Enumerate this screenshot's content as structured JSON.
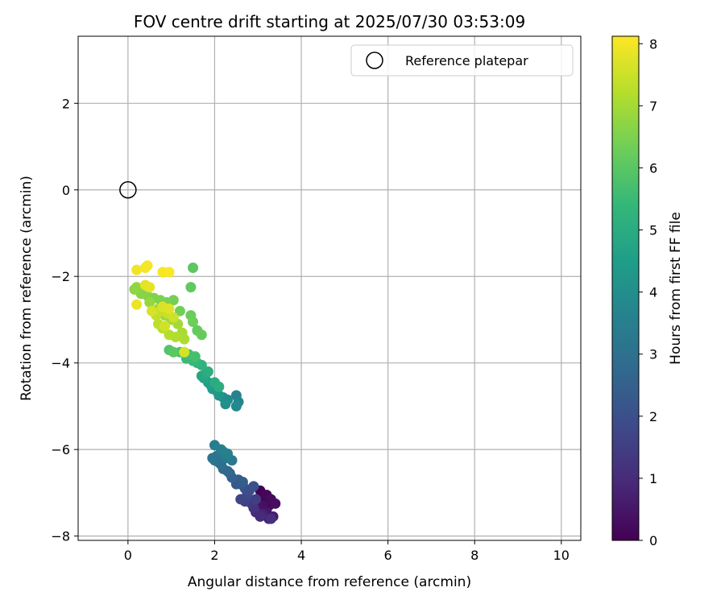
{
  "chart_data": {
    "type": "scatter",
    "title": "FOV centre drift starting at 2025/07/30 03:53:09",
    "xlabel": "Angular distance from reference (arcmin)",
    "ylabel": "Rotation from reference (arcmin)",
    "xlim": [
      -1.15,
      10.45
    ],
    "ylim": [
      -8.1,
      3.55
    ],
    "xticks": [
      0,
      2,
      4,
      6,
      8,
      10
    ],
    "yticks": [
      -8,
      -6,
      -4,
      -2,
      0,
      2
    ],
    "grid": true,
    "legend": {
      "position": "top-right",
      "entries": [
        "Reference platepar"
      ]
    },
    "reference_point": {
      "x": 0,
      "y": 0
    },
    "colorbar": {
      "label": "Hours from first FF file",
      "range": [
        0,
        8.12
      ],
      "ticks": [
        0,
        1,
        2,
        3,
        4,
        5,
        6,
        7,
        8
      ],
      "colormap": "viridis"
    },
    "colors": {
      "viridis": [
        "#440154",
        "#482878",
        "#3e4989",
        "#31688e",
        "#26828e",
        "#1f9e89",
        "#35b779",
        "#6ece58",
        "#b5de2b",
        "#fde725"
      ],
      "grid": "#b0b0b0",
      "axis": "#000000"
    },
    "points": [
      {
        "x": 3.05,
        "y": -6.95,
        "h": 0.0
      },
      {
        "x": 3.1,
        "y": -7.1,
        "h": 0.05
      },
      {
        "x": 3.15,
        "y": -7.2,
        "h": 0.1
      },
      {
        "x": 3.2,
        "y": -7.05,
        "h": 0.15
      },
      {
        "x": 3.25,
        "y": -7.3,
        "h": 0.2
      },
      {
        "x": 3.3,
        "y": -7.15,
        "h": 0.25
      },
      {
        "x": 3.4,
        "y": -7.25,
        "h": 0.3
      },
      {
        "x": 3.1,
        "y": -7.3,
        "h": 0.35
      },
      {
        "x": 3.0,
        "y": -7.4,
        "h": 0.45
      },
      {
        "x": 3.2,
        "y": -7.45,
        "h": 0.5
      },
      {
        "x": 3.35,
        "y": -7.55,
        "h": 0.6
      },
      {
        "x": 3.25,
        "y": -7.6,
        "h": 0.7
      },
      {
        "x": 3.1,
        "y": -7.5,
        "h": 0.8
      },
      {
        "x": 2.95,
        "y": -7.45,
        "h": 0.9
      },
      {
        "x": 3.05,
        "y": -7.55,
        "h": 1.0
      },
      {
        "x": 3.3,
        "y": -7.6,
        "h": 1.1
      },
      {
        "x": 2.9,
        "y": -7.35,
        "h": 1.2
      },
      {
        "x": 2.85,
        "y": -7.25,
        "h": 1.35
      },
      {
        "x": 2.95,
        "y": -7.15,
        "h": 1.5
      },
      {
        "x": 2.7,
        "y": -7.2,
        "h": 1.6
      },
      {
        "x": 2.6,
        "y": -7.15,
        "h": 1.7
      },
      {
        "x": 2.75,
        "y": -7.05,
        "h": 1.8
      },
      {
        "x": 2.8,
        "y": -6.95,
        "h": 1.9
      },
      {
        "x": 2.7,
        "y": -6.9,
        "h": 2.0
      },
      {
        "x": 2.9,
        "y": -6.85,
        "h": 2.05
      },
      {
        "x": 2.6,
        "y": -6.8,
        "h": 2.1
      },
      {
        "x": 2.5,
        "y": -6.8,
        "h": 2.2
      },
      {
        "x": 2.55,
        "y": -6.7,
        "h": 2.3
      },
      {
        "x": 2.65,
        "y": -6.75,
        "h": 2.4
      },
      {
        "x": 2.4,
        "y": -6.65,
        "h": 2.5
      },
      {
        "x": 2.35,
        "y": -6.55,
        "h": 2.6
      },
      {
        "x": 2.3,
        "y": -6.5,
        "h": 2.7
      },
      {
        "x": 2.2,
        "y": -6.45,
        "h": 2.8
      },
      {
        "x": 2.15,
        "y": -6.35,
        "h": 2.9
      },
      {
        "x": 2.1,
        "y": -6.3,
        "h": 3.0
      },
      {
        "x": 2.0,
        "y": -6.25,
        "h": 3.1
      },
      {
        "x": 1.95,
        "y": -6.2,
        "h": 3.15
      },
      {
        "x": 2.05,
        "y": -6.15,
        "h": 3.2
      },
      {
        "x": 2.25,
        "y": -6.2,
        "h": 3.25
      },
      {
        "x": 2.4,
        "y": -6.25,
        "h": 3.3
      },
      {
        "x": 2.2,
        "y": -6.05,
        "h": 3.4
      },
      {
        "x": 2.0,
        "y": -5.9,
        "h": 3.45
      },
      {
        "x": 2.15,
        "y": -6.0,
        "h": 3.5
      },
      {
        "x": 2.3,
        "y": -6.1,
        "h": 3.55
      },
      {
        "x": 2.5,
        "y": -4.75,
        "h": 3.6
      },
      {
        "x": 2.55,
        "y": -4.9,
        "h": 3.7
      },
      {
        "x": 2.5,
        "y": -5.0,
        "h": 3.8
      },
      {
        "x": 2.3,
        "y": -4.85,
        "h": 3.9
      },
      {
        "x": 2.2,
        "y": -4.8,
        "h": 4.0
      },
      {
        "x": 2.25,
        "y": -4.95,
        "h": 4.1
      },
      {
        "x": 2.1,
        "y": -4.75,
        "h": 4.2
      },
      {
        "x": 2.05,
        "y": -4.65,
        "h": 4.3
      },
      {
        "x": 1.95,
        "y": -4.6,
        "h": 4.4
      },
      {
        "x": 1.9,
        "y": -4.5,
        "h": 4.5
      },
      {
        "x": 1.85,
        "y": -4.45,
        "h": 4.6
      },
      {
        "x": 1.75,
        "y": -4.35,
        "h": 4.7
      },
      {
        "x": 1.7,
        "y": -4.3,
        "h": 4.8
      },
      {
        "x": 1.8,
        "y": -4.25,
        "h": 4.9
      },
      {
        "x": 2.0,
        "y": -4.45,
        "h": 5.0
      },
      {
        "x": 2.1,
        "y": -4.55,
        "h": 5.05
      },
      {
        "x": 1.85,
        "y": -4.2,
        "h": 5.1
      },
      {
        "x": 1.7,
        "y": -4.05,
        "h": 5.2
      },
      {
        "x": 1.6,
        "y": -4.0,
        "h": 5.3
      },
      {
        "x": 1.5,
        "y": -3.95,
        "h": 5.4
      },
      {
        "x": 1.35,
        "y": -3.9,
        "h": 5.5
      },
      {
        "x": 1.4,
        "y": -3.8,
        "h": 5.6
      },
      {
        "x": 1.55,
        "y": -3.85,
        "h": 5.7
      },
      {
        "x": 1.2,
        "y": -3.75,
        "h": 5.8
      },
      {
        "x": 0.95,
        "y": -3.7,
        "h": 5.9
      },
      {
        "x": 1.05,
        "y": -3.75,
        "h": 6.0
      },
      {
        "x": 1.5,
        "y": -1.8,
        "h": 6.05
      },
      {
        "x": 1.45,
        "y": -2.25,
        "h": 6.1
      },
      {
        "x": 1.6,
        "y": -3.25,
        "h": 6.15
      },
      {
        "x": 1.7,
        "y": -3.35,
        "h": 6.2
      },
      {
        "x": 1.45,
        "y": -2.9,
        "h": 6.25
      },
      {
        "x": 1.5,
        "y": -3.05,
        "h": 6.3
      },
      {
        "x": 1.2,
        "y": -2.8,
        "h": 6.35
      },
      {
        "x": 1.05,
        "y": -2.55,
        "h": 6.4
      },
      {
        "x": 0.9,
        "y": -2.6,
        "h": 6.45
      },
      {
        "x": 0.75,
        "y": -2.55,
        "h": 6.5
      },
      {
        "x": 0.6,
        "y": -2.5,
        "h": 6.55
      },
      {
        "x": 0.45,
        "y": -2.45,
        "h": 6.6
      },
      {
        "x": 0.3,
        "y": -2.4,
        "h": 6.65
      },
      {
        "x": 0.15,
        "y": -2.3,
        "h": 6.7
      },
      {
        "x": 0.2,
        "y": -2.25,
        "h": 6.75
      },
      {
        "x": 0.5,
        "y": -2.6,
        "h": 6.8
      },
      {
        "x": 0.7,
        "y": -2.75,
        "h": 6.85
      },
      {
        "x": 0.85,
        "y": -2.9,
        "h": 6.9
      },
      {
        "x": 1.0,
        "y": -3.0,
        "h": 6.95
      },
      {
        "x": 1.15,
        "y": -3.1,
        "h": 7.0
      },
      {
        "x": 1.25,
        "y": -3.3,
        "h": 7.05
      },
      {
        "x": 1.3,
        "y": -3.45,
        "h": 7.1
      },
      {
        "x": 1.1,
        "y": -3.4,
        "h": 7.15
      },
      {
        "x": 0.95,
        "y": -3.35,
        "h": 7.2
      },
      {
        "x": 0.8,
        "y": -3.2,
        "h": 7.25
      },
      {
        "x": 0.7,
        "y": -3.1,
        "h": 7.3
      },
      {
        "x": 0.65,
        "y": -2.9,
        "h": 7.35
      },
      {
        "x": 0.75,
        "y": -2.8,
        "h": 7.4
      },
      {
        "x": 0.9,
        "y": -2.85,
        "h": 7.45
      },
      {
        "x": 1.05,
        "y": -2.95,
        "h": 7.5
      },
      {
        "x": 0.85,
        "y": -3.15,
        "h": 7.55
      },
      {
        "x": 1.3,
        "y": -3.75,
        "h": 7.6
      },
      {
        "x": 0.55,
        "y": -2.8,
        "h": 7.65
      },
      {
        "x": 0.8,
        "y": -2.7,
        "h": 7.7
      },
      {
        "x": 0.95,
        "y": -2.75,
        "h": 7.75
      },
      {
        "x": 0.4,
        "y": -2.2,
        "h": 7.8
      },
      {
        "x": 0.5,
        "y": -2.25,
        "h": 7.85
      },
      {
        "x": 0.2,
        "y": -2.65,
        "h": 7.9
      },
      {
        "x": 0.2,
        "y": -1.85,
        "h": 7.95
      },
      {
        "x": 0.4,
        "y": -1.8,
        "h": 8.0
      },
      {
        "x": 0.45,
        "y": -1.75,
        "h": 8.02
      },
      {
        "x": 0.8,
        "y": -1.9,
        "h": 8.05
      },
      {
        "x": 0.95,
        "y": -1.9,
        "h": 8.08
      }
    ]
  }
}
